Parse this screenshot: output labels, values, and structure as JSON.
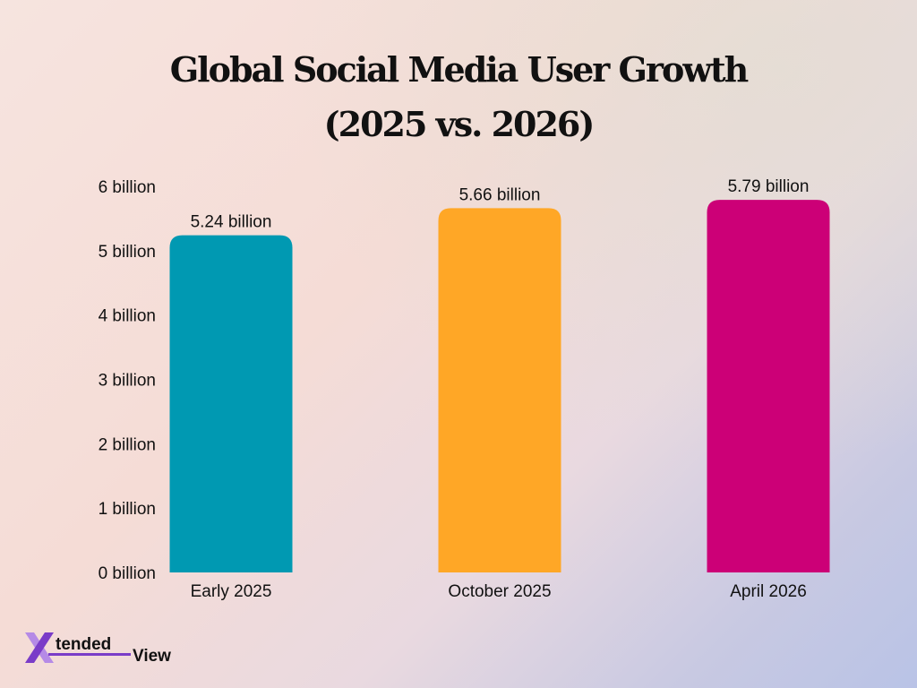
{
  "title_line1": "Global Social Media User Growth",
  "title_line2": "(2025 vs. 2026)",
  "chart_data": {
    "type": "bar",
    "title": "Global Social Media User Growth (2025 vs. 2026)",
    "xlabel": "",
    "ylabel": "",
    "categories": [
      "Early 2025",
      "October 2025",
      "April 2026"
    ],
    "values": [
      5.24,
      5.66,
      5.79
    ],
    "value_labels": [
      "5.24 billion",
      "5.66 billion",
      "5.79 billion"
    ],
    "colors": [
      "#0099b2",
      "#ffa726",
      "#cc0077"
    ],
    "yticks": [
      0,
      1,
      2,
      3,
      4,
      5,
      6
    ],
    "ytick_labels": [
      "0 billion",
      "1 billion",
      "2 billion",
      "3 billion",
      "4 billion",
      "5 billion",
      "6 billion"
    ],
    "ylim": [
      0,
      6
    ],
    "grid": false,
    "legend": "none"
  },
  "logo": {
    "text_primary": "tended",
    "text_secondary": "View",
    "colors": {
      "x_mark": "#7a3cc8",
      "x_mark_light": "#b58ae6",
      "text": "#111111",
      "underline": "#7a3cc8"
    }
  }
}
